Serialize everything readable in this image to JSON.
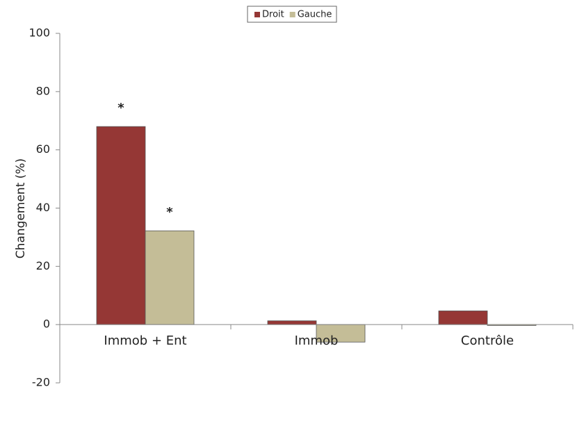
{
  "chart_data": {
    "type": "bar",
    "y_label": "Changement (%)",
    "categories": [
      "Immob + Ent",
      "Immob",
      "Contrôle"
    ],
    "series": [
      {
        "name": "Droit",
        "color": "#953735",
        "values": [
          68,
          1.3,
          4.7
        ],
        "markers": [
          "*",
          null,
          null
        ]
      },
      {
        "name": "Gauche",
        "color": "#c4bd97",
        "values": [
          32.2,
          -6,
          -0.3
        ],
        "markers": [
          "*",
          null,
          null
        ]
      }
    ],
    "ylim": [
      -20,
      100
    ],
    "yticks": [
      -20,
      0,
      20,
      40,
      60,
      80,
      100
    ],
    "legend": "top"
  }
}
